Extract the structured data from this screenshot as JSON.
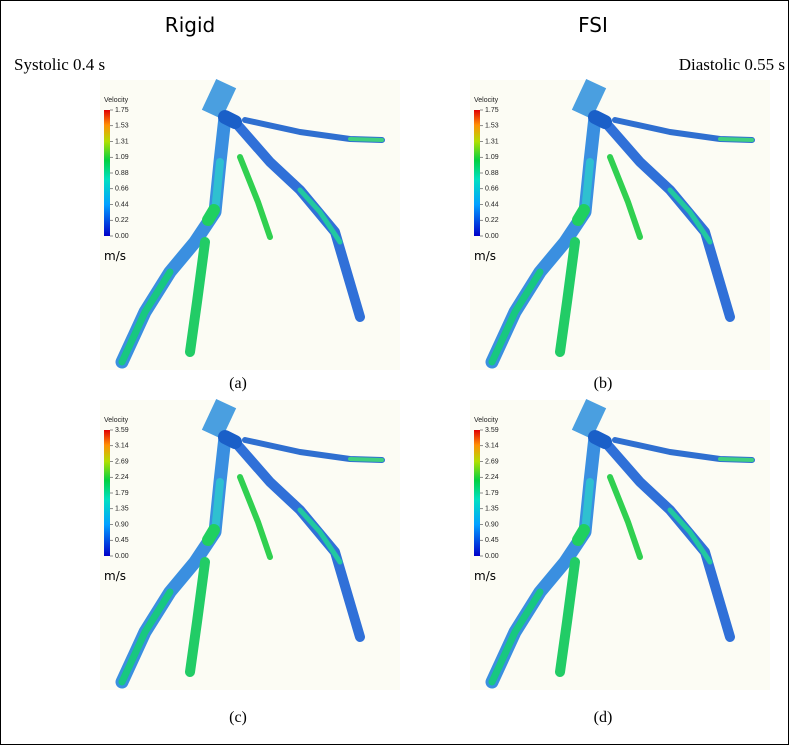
{
  "header": {
    "left": "Rigid",
    "right": "FSI"
  },
  "phases": {
    "left": "Systolic 0.4 s",
    "right": "Diastolic 0.55 s"
  },
  "panels": [
    {
      "legend_title": "Velocity",
      "ticks": [
        "1.75",
        "1.53",
        "1.31",
        "1.09",
        "0.88",
        "0.66",
        "0.44",
        "0.22",
        "0.00"
      ],
      "unit": "m/s",
      "caption": "(a)"
    },
    {
      "legend_title": "Velocity",
      "ticks": [
        "1.75",
        "1.53",
        "1.31",
        "1.09",
        "0.88",
        "0.66",
        "0.44",
        "0.22",
        "0.00"
      ],
      "unit": "m/s",
      "caption": "(b)"
    },
    {
      "legend_title": "Velocity",
      "ticks": [
        "3.59",
        "3.14",
        "2.69",
        "2.24",
        "1.79",
        "1.35",
        "0.90",
        "0.45",
        "0.00"
      ],
      "unit": "m/s",
      "caption": "(c)"
    },
    {
      "legend_title": "Velocity",
      "ticks": [
        "3.59",
        "3.14",
        "2.69",
        "2.24",
        "1.79",
        "1.35",
        "0.90",
        "0.45",
        "0.00"
      ],
      "unit": "m/s",
      "caption": "(d)"
    }
  ]
}
